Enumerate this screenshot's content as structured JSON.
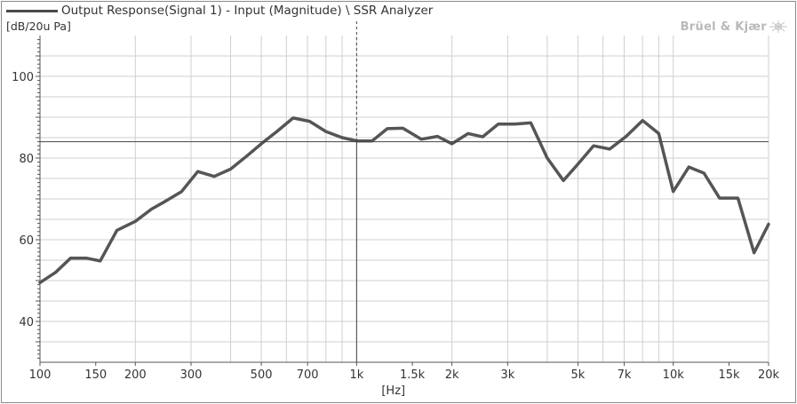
{
  "legend": {
    "label": "Output Response(Signal 1) - Input (Magnitude) \\ SSR Analyzer"
  },
  "brand": {
    "text": "Brüel & Kjær"
  },
  "colors": {
    "series": "#555555",
    "grid": "#cfcfcf",
    "cursor": "#444444",
    "text": "#333333"
  },
  "chart_data": {
    "type": "line",
    "title": "",
    "xlabel": "[Hz]",
    "ylabel": "[dB/20u Pa]",
    "xscale": "log",
    "xlim": [
      100,
      20000
    ],
    "ylim": [
      30,
      110
    ],
    "grid": true,
    "xticks": [
      {
        "value": 100,
        "label": "100"
      },
      {
        "value": 150,
        "label": "150"
      },
      {
        "value": 200,
        "label": "200"
      },
      {
        "value": 300,
        "label": "300"
      },
      {
        "value": 500,
        "label": "500"
      },
      {
        "value": 700,
        "label": "700"
      },
      {
        "value": 1000,
        "label": "1k"
      },
      {
        "value": 1500,
        "label": "1.5k"
      },
      {
        "value": 2000,
        "label": "2k"
      },
      {
        "value": 3000,
        "label": "3k"
      },
      {
        "value": 5000,
        "label": "5k"
      },
      {
        "value": 7000,
        "label": "7k"
      },
      {
        "value": 10000,
        "label": "10k"
      },
      {
        "value": 15000,
        "label": "15k"
      },
      {
        "value": 20000,
        "label": "20k"
      }
    ],
    "yticks": [
      {
        "value": 40,
        "label": "40"
      },
      {
        "value": 60,
        "label": "60"
      },
      {
        "value": 80,
        "label": "80"
      },
      {
        "value": 100,
        "label": "100"
      }
    ],
    "cursor": {
      "x": 1000,
      "y": 84
    },
    "series": [
      {
        "name": "Output Response(Signal 1) - Input (Magnitude) \\ SSR Analyzer",
        "x": [
          100,
          112,
          125,
          140,
          155,
          175,
          200,
          225,
          250,
          280,
          315,
          355,
          400,
          450,
          500,
          560,
          630,
          710,
          800,
          900,
          1000,
          1120,
          1250,
          1400,
          1600,
          1800,
          2000,
          2250,
          2500,
          2800,
          3150,
          3550,
          4000,
          4500,
          5000,
          5600,
          6300,
          7100,
          8000,
          9000,
          10000,
          11200,
          12500,
          14000,
          16000,
          18000,
          20000
        ],
        "y": [
          49.5,
          52,
          55.5,
          55.5,
          54.8,
          62.3,
          64.5,
          67.5,
          69.5,
          71.8,
          76.7,
          75.5,
          77.3,
          80.5,
          83.5,
          86.5,
          89.8,
          89,
          86.5,
          85,
          84.2,
          84.2,
          87.2,
          87.3,
          84.6,
          85.3,
          83.5,
          86,
          85.2,
          88.3,
          88.3,
          88.6,
          80,
          74.5,
          78.5,
          83,
          82.2,
          85.3,
          89.2,
          86,
          71.8,
          77.8,
          76.3,
          70.2,
          70.2,
          56.8,
          63.8
        ]
      }
    ]
  }
}
